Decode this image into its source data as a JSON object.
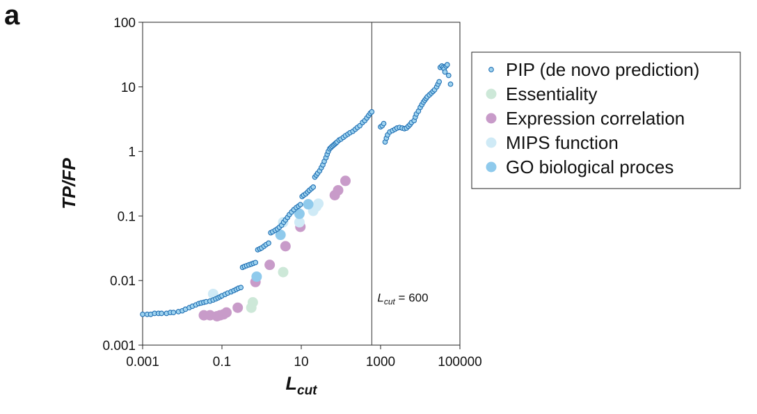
{
  "panel_label": "a",
  "chart_data": {
    "type": "scatter",
    "xlabel": "L",
    "xlabel_sub": "cut",
    "ylabel": "TP/FP",
    "x_scale": "log",
    "y_scale": "log",
    "xlim": [
      0.001,
      100000
    ],
    "ylim": [
      0.001,
      100
    ],
    "x_ticks": [
      0.001,
      0.1,
      10,
      1000,
      100000
    ],
    "x_tick_labels": [
      "0.001",
      "0.1",
      "10",
      "1000",
      "100000"
    ],
    "y_ticks": [
      0.001,
      0.01,
      0.1,
      1,
      10,
      100
    ],
    "y_tick_labels": [
      "0.001",
      "0.01",
      "0.1",
      "1",
      "10",
      "100"
    ],
    "grid": false,
    "legend_position": "right",
    "vline": {
      "x": 600,
      "label_main": "L",
      "label_sub": "cut",
      "label_rest": " = 600"
    },
    "series": [
      {
        "name": "PIP (de novo prediction)",
        "color": "#1f6fb3",
        "fill": "#9fd3ef",
        "marker": "small-circle",
        "points": [
          [
            0.001,
            0.003
          ],
          [
            0.0013,
            0.003
          ],
          [
            0.0016,
            0.003
          ],
          [
            0.002,
            0.0031
          ],
          [
            0.0025,
            0.0031
          ],
          [
            0.003,
            0.0031
          ],
          [
            0.004,
            0.0031
          ],
          [
            0.005,
            0.0032
          ],
          [
            0.006,
            0.0032
          ],
          [
            0.008,
            0.0033
          ],
          [
            0.01,
            0.0034
          ],
          [
            0.012,
            0.0036
          ],
          [
            0.015,
            0.0038
          ],
          [
            0.018,
            0.004
          ],
          [
            0.022,
            0.0042
          ],
          [
            0.026,
            0.0044
          ],
          [
            0.03,
            0.0045
          ],
          [
            0.035,
            0.0046
          ],
          [
            0.04,
            0.0047
          ],
          [
            0.05,
            0.0048
          ],
          [
            0.06,
            0.005
          ],
          [
            0.07,
            0.0052
          ],
          [
            0.08,
            0.0054
          ],
          [
            0.09,
            0.0056
          ],
          [
            0.1,
            0.0058
          ],
          [
            0.12,
            0.0061
          ],
          [
            0.14,
            0.0064
          ],
          [
            0.17,
            0.0067
          ],
          [
            0.2,
            0.007
          ],
          [
            0.23,
            0.0073
          ],
          [
            0.26,
            0.0076
          ],
          [
            0.3,
            0.0078
          ],
          [
            0.33,
            0.016
          ],
          [
            0.37,
            0.0165
          ],
          [
            0.42,
            0.017
          ],
          [
            0.48,
            0.0175
          ],
          [
            0.55,
            0.018
          ],
          [
            0.62,
            0.0185
          ],
          [
            0.7,
            0.019
          ],
          [
            0.8,
            0.03
          ],
          [
            0.9,
            0.031
          ],
          [
            1.0,
            0.032
          ],
          [
            1.15,
            0.034
          ],
          [
            1.3,
            0.036
          ],
          [
            1.5,
            0.038
          ],
          [
            1.7,
            0.055
          ],
          [
            1.9,
            0.057
          ],
          [
            2.2,
            0.06
          ],
          [
            2.5,
            0.063
          ],
          [
            2.8,
            0.067
          ],
          [
            3.2,
            0.072
          ],
          [
            3.6,
            0.08
          ],
          [
            4.0,
            0.087
          ],
          [
            4.5,
            0.095
          ],
          [
            5.0,
            0.105
          ],
          [
            5.7,
            0.115
          ],
          [
            6.5,
            0.125
          ],
          [
            7.5,
            0.135
          ],
          [
            8.5,
            0.142
          ],
          [
            9.5,
            0.15
          ],
          [
            10.5,
            0.2
          ],
          [
            11.5,
            0.21
          ],
          [
            13,
            0.22
          ],
          [
            14.5,
            0.235
          ],
          [
            16,
            0.25
          ],
          [
            18,
            0.265
          ],
          [
            20,
            0.28
          ],
          [
            22,
            0.4
          ],
          [
            24,
            0.43
          ],
          [
            26,
            0.46
          ],
          [
            29,
            0.5
          ],
          [
            32,
            0.56
          ],
          [
            35,
            0.62
          ],
          [
            38,
            0.7
          ],
          [
            42,
            0.8
          ],
          [
            45,
            0.9
          ],
          [
            48,
            1.0
          ],
          [
            52,
            1.1
          ],
          [
            56,
            1.15
          ],
          [
            60,
            1.2
          ],
          [
            65,
            1.25
          ],
          [
            70,
            1.3
          ],
          [
            75,
            1.35
          ],
          [
            80,
            1.4
          ],
          [
            90,
            1.5
          ],
          [
            100,
            1.55
          ],
          [
            115,
            1.65
          ],
          [
            130,
            1.75
          ],
          [
            150,
            1.85
          ],
          [
            170,
            1.95
          ],
          [
            200,
            2.05
          ],
          [
            230,
            2.2
          ],
          [
            260,
            2.35
          ],
          [
            300,
            2.5
          ],
          [
            350,
            2.8
          ],
          [
            400,
            3.0
          ],
          [
            450,
            3.3
          ],
          [
            500,
            3.6
          ],
          [
            550,
            3.9
          ],
          [
            600,
            4.1
          ],
          [
            1000,
            2.4
          ],
          [
            1100,
            2.5
          ],
          [
            1200,
            2.7
          ],
          [
            1300,
            1.4
          ],
          [
            1400,
            1.6
          ],
          [
            1500,
            1.8
          ],
          [
            1700,
            2.0
          ],
          [
            2000,
            2.1
          ],
          [
            2300,
            2.2
          ],
          [
            2600,
            2.3
          ],
          [
            3000,
            2.35
          ],
          [
            3500,
            2.3
          ],
          [
            4000,
            2.25
          ],
          [
            4500,
            2.3
          ],
          [
            5000,
            2.45
          ],
          [
            5500,
            2.6
          ],
          [
            6000,
            2.8
          ],
          [
            7000,
            3.0
          ],
          [
            7500,
            3.4
          ],
          [
            8000,
            3.8
          ],
          [
            9000,
            4.2
          ],
          [
            10000,
            4.8
          ],
          [
            11000,
            5.3
          ],
          [
            12000,
            5.8
          ],
          [
            13000,
            6.2
          ],
          [
            14000,
            6.6
          ],
          [
            15000,
            7.0
          ],
          [
            17000,
            7.5
          ],
          [
            19000,
            8.0
          ],
          [
            21000,
            8.5
          ],
          [
            23000,
            9.0
          ],
          [
            26000,
            10.0
          ],
          [
            28000,
            11.0
          ],
          [
            30000,
            12.0
          ],
          [
            32000,
            20.0
          ],
          [
            35000,
            21.0
          ],
          [
            38000,
            20.0
          ],
          [
            40000,
            19.0
          ],
          [
            42000,
            17.0
          ],
          [
            45000,
            21.0
          ],
          [
            48000,
            22.0
          ],
          [
            52000,
            15.0
          ],
          [
            58000,
            11.0
          ]
        ]
      },
      {
        "name": "Essentiality",
        "color": "#cde8d8",
        "marker": "large-circle",
        "points": [
          [
            0.55,
            0.0038
          ],
          [
            0.6,
            0.0046
          ],
          [
            3.5,
            0.0135
          ]
        ]
      },
      {
        "name": "Expression correlation",
        "color": "#c89bc9",
        "marker": "large-circle",
        "points": [
          [
            0.035,
            0.0029
          ],
          [
            0.05,
            0.0029
          ],
          [
            0.075,
            0.0028
          ],
          [
            0.09,
            0.0029
          ],
          [
            0.11,
            0.003
          ],
          [
            0.13,
            0.0032
          ],
          [
            0.25,
            0.0038
          ],
          [
            0.7,
            0.0095
          ],
          [
            1.6,
            0.0175
          ],
          [
            4.0,
            0.034
          ],
          [
            9.5,
            0.068
          ],
          [
            70,
            0.21
          ],
          [
            85,
            0.25
          ],
          [
            130,
            0.35
          ]
        ]
      },
      {
        "name": "MIPS function",
        "color": "#cfeaf6",
        "marker": "large-circle",
        "points": [
          [
            0.06,
            0.0062
          ],
          [
            3.5,
            0.08
          ],
          [
            9.0,
            0.08
          ],
          [
            20,
            0.12
          ],
          [
            24,
            0.14
          ],
          [
            27,
            0.155
          ]
        ]
      },
      {
        "name": "GO biological proces",
        "color": "#8fcaec",
        "marker": "large-circle",
        "points": [
          [
            0.75,
            0.0115
          ],
          [
            3.0,
            0.051
          ],
          [
            9.0,
            0.108
          ],
          [
            15,
            0.152
          ]
        ]
      }
    ]
  }
}
